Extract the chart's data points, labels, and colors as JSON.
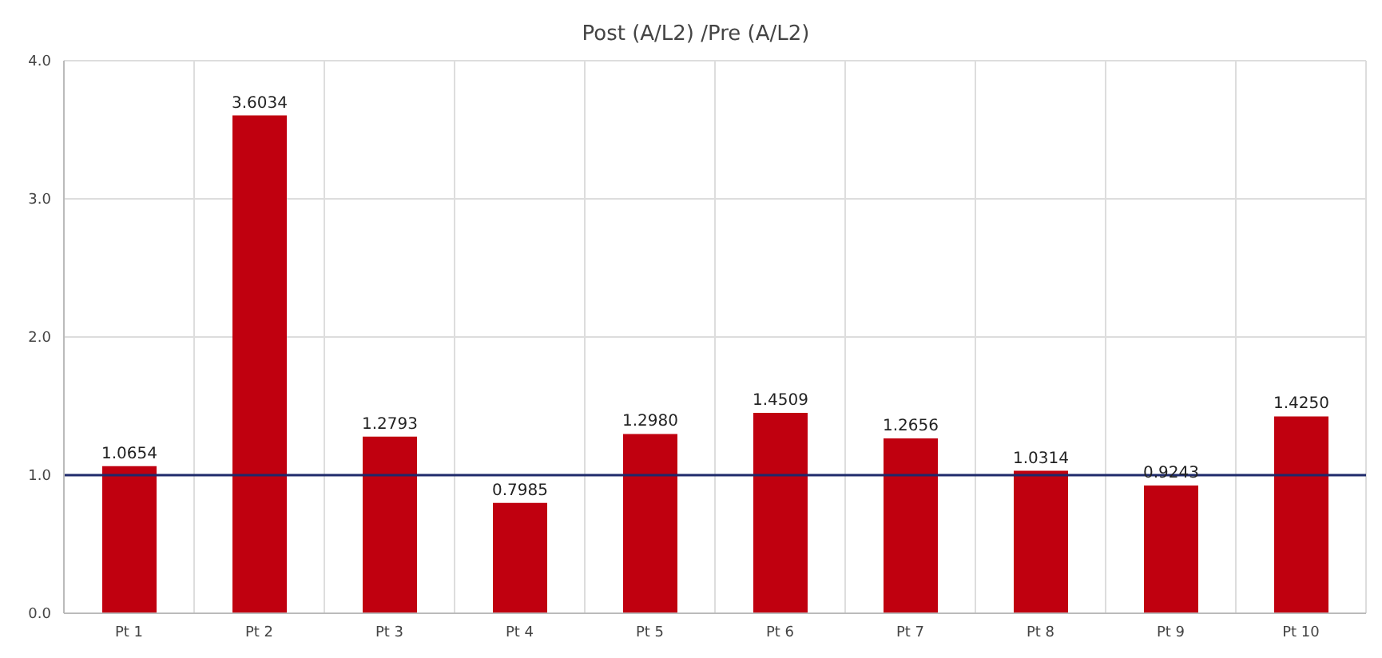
{
  "chart_data": {
    "type": "bar",
    "title": "Post (A/L2) /Pre (A/L2)",
    "categories": [
      "Pt 1",
      "Pt 2",
      "Pt 3",
      "Pt 4",
      "Pt 5",
      "Pt 6",
      "Pt 7",
      "Pt 8",
      "Pt 9",
      "Pt 10"
    ],
    "values": [
      1.0654,
      3.6034,
      1.2793,
      0.7985,
      1.298,
      1.4509,
      1.2656,
      1.0314,
      0.9243,
      1.425
    ],
    "value_labels": [
      "1.0654",
      "3.6034",
      "1.2793",
      "0.7985",
      "1.2980",
      "1.4509",
      "1.2656",
      "1.0314",
      "0.9243",
      "1.4250"
    ],
    "color": "#c0000f",
    "ylim": [
      0,
      4
    ],
    "yticks": [
      {
        "value": 0,
        "label": "0.0"
      },
      {
        "value": 1,
        "label": "1.0"
      },
      {
        "value": 2,
        "label": "2.0"
      },
      {
        "value": 3,
        "label": "3.0"
      },
      {
        "value": 4,
        "label": "4.0"
      }
    ],
    "grid": true,
    "ref_lines": [
      {
        "axis": "y",
        "value": 1,
        "label": null,
        "color": "#1f2a6b"
      }
    ]
  }
}
